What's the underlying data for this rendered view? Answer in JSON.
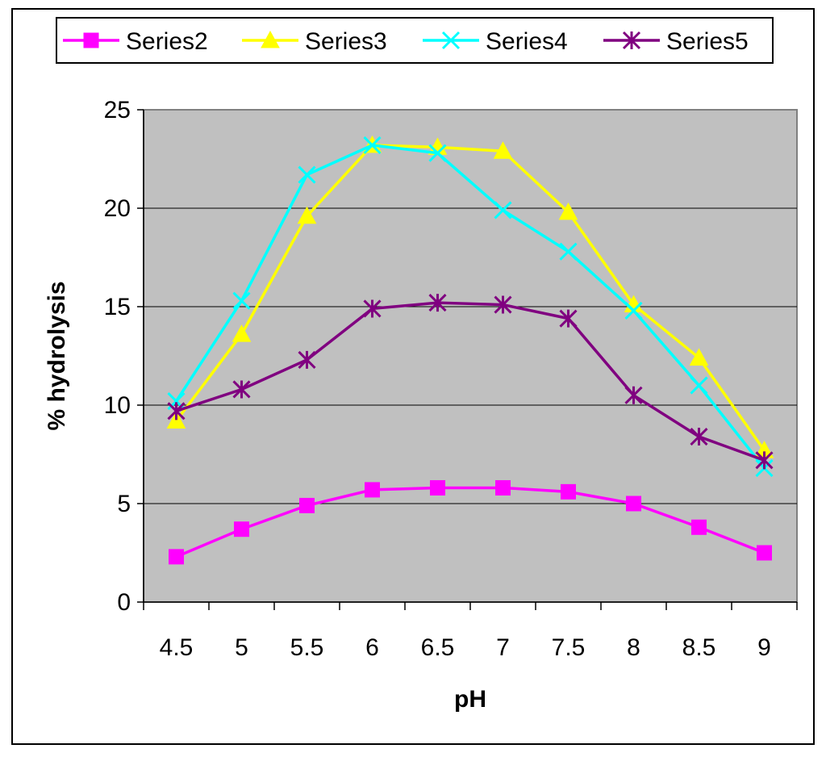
{
  "chart_data": {
    "type": "line",
    "title": "",
    "xlabel": "pH",
    "ylabel": "% hydrolysis",
    "categories": [
      "4.5",
      "5",
      "5.5",
      "6",
      "6.5",
      "7",
      "7.5",
      "8",
      "8.5",
      "9"
    ],
    "ylim": [
      0,
      25
    ],
    "yticks": [
      0,
      5,
      10,
      15,
      20,
      25
    ],
    "grid": true,
    "legend_position": "top",
    "series": [
      {
        "name": "Series2",
        "color": "#ff00ff",
        "marker": "square",
        "values": [
          2.3,
          3.7,
          4.9,
          5.7,
          5.8,
          5.8,
          5.6,
          5.0,
          3.8,
          2.5
        ]
      },
      {
        "name": "Series3",
        "color": "#ffff00",
        "marker": "triangle",
        "values": [
          9.2,
          13.6,
          19.6,
          23.2,
          23.1,
          22.9,
          19.8,
          15.1,
          12.4,
          7.7
        ]
      },
      {
        "name": "Series4",
        "color": "#00ffff",
        "marker": "x",
        "values": [
          10.2,
          15.3,
          21.7,
          23.2,
          22.8,
          19.9,
          17.8,
          14.8,
          11.0,
          6.8
        ]
      },
      {
        "name": "Series5",
        "color": "#800080",
        "marker": "asterisk",
        "values": [
          9.7,
          10.8,
          12.3,
          14.9,
          15.2,
          15.1,
          14.4,
          10.5,
          8.4,
          7.2
        ]
      }
    ]
  }
}
